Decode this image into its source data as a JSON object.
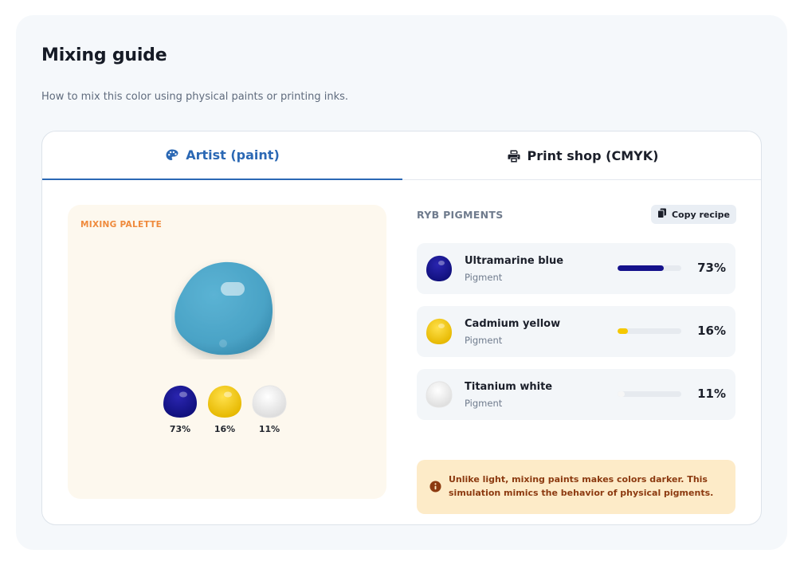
{
  "header": {
    "title": "Mixing guide",
    "subtitle": "How to mix this color using physical paints or printing inks."
  },
  "tabs": [
    {
      "label": "Artist (paint)",
      "icon": "palette-icon",
      "active": true
    },
    {
      "label": "Print shop (CMYK)",
      "icon": "printer-icon",
      "active": false
    }
  ],
  "palette": {
    "label": "MIXING PALETTE",
    "result_color": "#4aa3c6",
    "drops": [
      {
        "color": "#1a1594",
        "percent": "73%"
      },
      {
        "color": "#f5c800",
        "percent": "16%"
      },
      {
        "color": "#f4f4f4",
        "percent": "11%"
      }
    ]
  },
  "pigments": {
    "title": "RYB PIGMENTS",
    "copy_label": "Copy recipe",
    "items": [
      {
        "name": "Ultramarine blue",
        "type": "Pigment",
        "percent": "73%",
        "fraction": 0.73,
        "color": "#15128c"
      },
      {
        "name": "Cadmium yellow",
        "type": "Pigment",
        "percent": "16%",
        "fraction": 0.16,
        "color": "#f5c800"
      },
      {
        "name": "Titanium white",
        "type": "Pigment",
        "percent": "11%",
        "fraction": 0.11,
        "color": "#f6f6f6"
      }
    ]
  },
  "note": {
    "text": "Unlike light, mixing paints makes colors darker. This simulation mimics the behavior of physical pigments."
  },
  "colors": {
    "accent": "#2b68b4",
    "palette_label": "#ef8a3c",
    "note_bg": "#fdebc8",
    "note_text": "#8c3a10"
  }
}
